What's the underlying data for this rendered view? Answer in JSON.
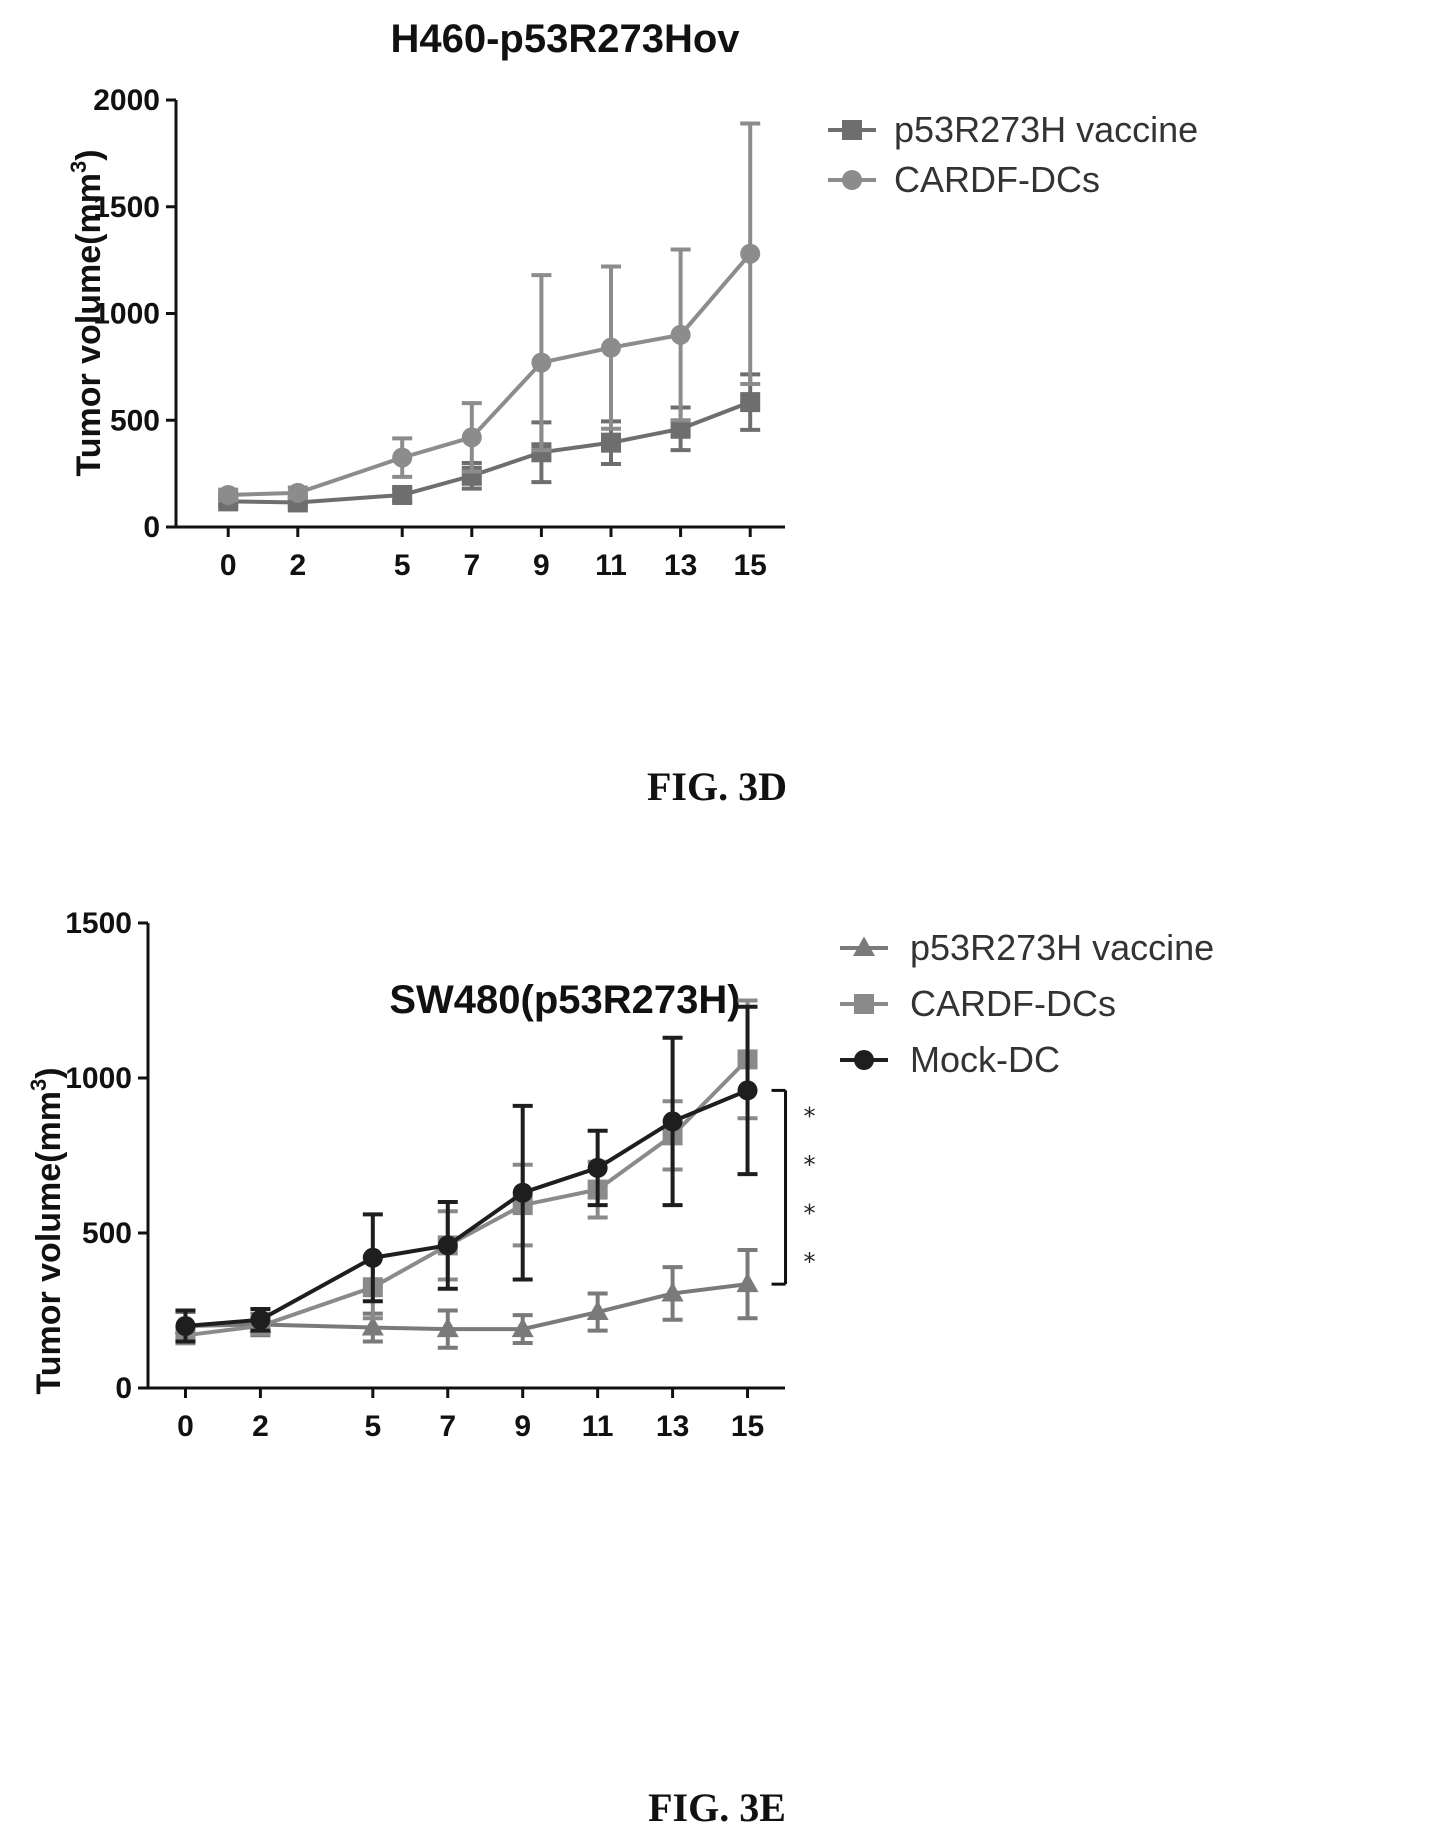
{
  "figures": [
    {
      "caption": "FIG. 3D",
      "chart_data": {
        "type": "line",
        "title": "H460-p53R273Hov",
        "xlabel": "",
        "ylabel": "Tumor volume(mm",
        "ylabel_sup": "3",
        "ylabel_end": ")",
        "x": [
          0,
          2,
          5,
          7,
          9,
          11,
          13,
          15
        ],
        "xlim": [
          -1.5,
          16
        ],
        "ylim": [
          0,
          2000
        ],
        "yticks": [
          0,
          500,
          1000,
          1500,
          2000
        ],
        "legend_position": "top-right",
        "series": [
          {
            "name": "p53R273H vaccine",
            "marker": "square",
            "color": "#6e6e6e",
            "values": [
              120,
              115,
              150,
              240,
              350,
              395,
              460,
              585
            ],
            "err": [
              20,
              20,
              30,
              60,
              140,
              100,
              100,
              130
            ]
          },
          {
            "name": "CARDF-DCs",
            "marker": "circle",
            "color": "#8c8c8c",
            "values": [
              150,
              160,
              325,
              420,
              770,
              840,
              900,
              1280
            ],
            "err": [
              25,
              25,
              90,
              160,
              410,
              380,
              400,
              610
            ]
          }
        ],
        "significance": []
      }
    },
    {
      "caption": "FIG. 3E",
      "chart_data": {
        "type": "line",
        "title": "SW480(p53R273H)",
        "xlabel": "",
        "ylabel": "Tumor volume(mm",
        "ylabel_sup": "3",
        "ylabel_end": ")",
        "x": [
          0,
          2,
          5,
          7,
          9,
          11,
          13,
          15
        ],
        "xlim": [
          -1,
          16
        ],
        "ylim": [
          0,
          1500
        ],
        "yticks": [
          0,
          500,
          1000,
          1500
        ],
        "legend_position": "top-right",
        "series": [
          {
            "name": "p53R273H vaccine",
            "marker": "triangle",
            "color": "#7a7a7a",
            "values": [
              200,
              205,
              195,
              190,
              190,
              245,
              305,
              335
            ],
            "err": [
              45,
              35,
              45,
              60,
              45,
              60,
              85,
              110
            ]
          },
          {
            "name": "CARDF-DCs",
            "marker": "square",
            "color": "#8a8a8a",
            "values": [
              170,
              200,
              325,
              460,
              590,
              640,
              815,
              1060
            ],
            "err": [
              20,
              25,
              100,
              110,
              130,
              90,
              110,
              190
            ]
          },
          {
            "name": "Mock-DC",
            "marker": "circle",
            "color": "#1e1e1e",
            "values": [
              200,
              220,
              420,
              460,
              630,
              710,
              860,
              960
            ],
            "err": [
              50,
              35,
              140,
              140,
              280,
              120,
              270,
              270
            ]
          }
        ],
        "significance": [
          "*",
          "*",
          "*",
          "*"
        ]
      }
    }
  ]
}
